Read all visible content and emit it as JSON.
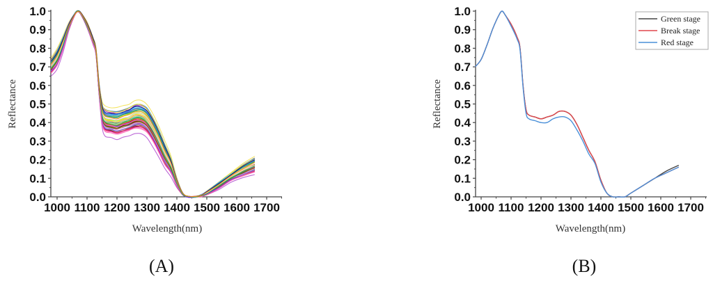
{
  "figure": {
    "panels": [
      {
        "id": "A",
        "label": "(A)"
      },
      {
        "id": "B",
        "label": "(B)"
      }
    ]
  },
  "chart_data": [
    {
      "type": "line",
      "panel": "(A)",
      "title": "",
      "xlabel": "Wavelength(nm)",
      "ylabel": "Reflectance",
      "xlim": [
        975,
        1750
      ],
      "ylim": [
        0.0,
        1.0
      ],
      "xticks": [
        1000,
        1100,
        1200,
        1300,
        1400,
        1500,
        1600,
        1700
      ],
      "yticks": [
        "0.0",
        "0.1",
        "0.2",
        "0.3",
        "0.4",
        "0.5",
        "0.6",
        "0.7",
        "0.8",
        "0.9",
        "1.0"
      ],
      "grid": false,
      "legend": null,
      "description": "Many overlapping multicolored normalized reflectance spectra (one per sample)",
      "x": [
        980,
        1000,
        1020,
        1040,
        1060,
        1070,
        1080,
        1100,
        1120,
        1130,
        1140,
        1150,
        1160,
        1180,
        1200,
        1220,
        1240,
        1260,
        1280,
        1300,
        1320,
        1340,
        1360,
        1380,
        1400,
        1420,
        1440,
        1460,
        1480,
        1500,
        1540,
        1580,
        1620,
        1660
      ],
      "envelope": {
        "upper": [
          0.75,
          0.8,
          0.87,
          0.94,
          0.99,
          1.0,
          0.99,
          0.94,
          0.86,
          0.8,
          0.62,
          0.52,
          0.49,
          0.48,
          0.48,
          0.49,
          0.5,
          0.52,
          0.52,
          0.5,
          0.45,
          0.38,
          0.3,
          0.22,
          0.1,
          0.02,
          0.0,
          0.0,
          0.01,
          0.03,
          0.08,
          0.13,
          0.18,
          0.22
        ],
        "lower": [
          0.65,
          0.69,
          0.78,
          0.9,
          0.98,
          1.0,
          0.98,
          0.91,
          0.82,
          0.76,
          0.55,
          0.38,
          0.33,
          0.32,
          0.31,
          0.32,
          0.33,
          0.34,
          0.34,
          0.32,
          0.27,
          0.21,
          0.15,
          0.11,
          0.05,
          0.01,
          0.0,
          0.0,
          0.0,
          0.01,
          0.04,
          0.08,
          0.1,
          0.12
        ]
      },
      "sample_count_visible": "many (~100 spectra)"
    },
    {
      "type": "line",
      "panel": "(B)",
      "title": "",
      "xlabel": "Wavelength(nm)",
      "ylabel": "Reflectance",
      "xlim": [
        975,
        1750
      ],
      "ylim": [
        0.0,
        1.0
      ],
      "xticks": [
        1000,
        1100,
        1200,
        1300,
        1400,
        1500,
        1600,
        1700
      ],
      "yticks": [
        "0.0",
        "0.1",
        "0.2",
        "0.3",
        "0.4",
        "0.5",
        "0.6",
        "0.7",
        "0.8",
        "0.9",
        "1.0"
      ],
      "grid": false,
      "legend": {
        "position": "top-right",
        "entries": [
          "Green stage",
          "Break stage",
          "Red stage"
        ]
      },
      "x": [
        980,
        1000,
        1020,
        1040,
        1060,
        1070,
        1080,
        1100,
        1120,
        1130,
        1140,
        1150,
        1160,
        1180,
        1200,
        1220,
        1240,
        1260,
        1280,
        1300,
        1320,
        1340,
        1360,
        1380,
        1400,
        1420,
        1440,
        1460,
        1480,
        1500,
        1540,
        1580,
        1620,
        1660
      ],
      "series": [
        {
          "name": "Green stage",
          "color": "#444444",
          "values": [
            0.7,
            0.74,
            0.82,
            0.91,
            0.98,
            1.0,
            0.98,
            0.93,
            0.86,
            0.8,
            0.6,
            0.47,
            0.44,
            0.43,
            0.42,
            0.43,
            0.44,
            0.46,
            0.46,
            0.44,
            0.39,
            0.32,
            0.25,
            0.19,
            0.09,
            0.02,
            0.0,
            0.0,
            0.0,
            0.02,
            0.06,
            0.1,
            0.14,
            0.17
          ]
        },
        {
          "name": "Break stage",
          "color": "#e0474c",
          "values": [
            0.7,
            0.74,
            0.82,
            0.91,
            0.98,
            1.0,
            0.98,
            0.93,
            0.86,
            0.8,
            0.6,
            0.47,
            0.44,
            0.43,
            0.42,
            0.43,
            0.44,
            0.46,
            0.46,
            0.44,
            0.39,
            0.32,
            0.25,
            0.19,
            0.09,
            0.02,
            0.0,
            0.0,
            0.0,
            0.02,
            0.06,
            0.1,
            0.13,
            0.16
          ]
        },
        {
          "name": "Red stage",
          "color": "#4a90d9",
          "values": [
            0.7,
            0.74,
            0.82,
            0.91,
            0.98,
            1.0,
            0.98,
            0.92,
            0.85,
            0.79,
            0.59,
            0.45,
            0.42,
            0.41,
            0.4,
            0.4,
            0.42,
            0.43,
            0.43,
            0.41,
            0.36,
            0.3,
            0.23,
            0.18,
            0.08,
            0.02,
            0.0,
            0.0,
            0.0,
            0.02,
            0.06,
            0.1,
            0.13,
            0.16
          ]
        }
      ]
    }
  ]
}
